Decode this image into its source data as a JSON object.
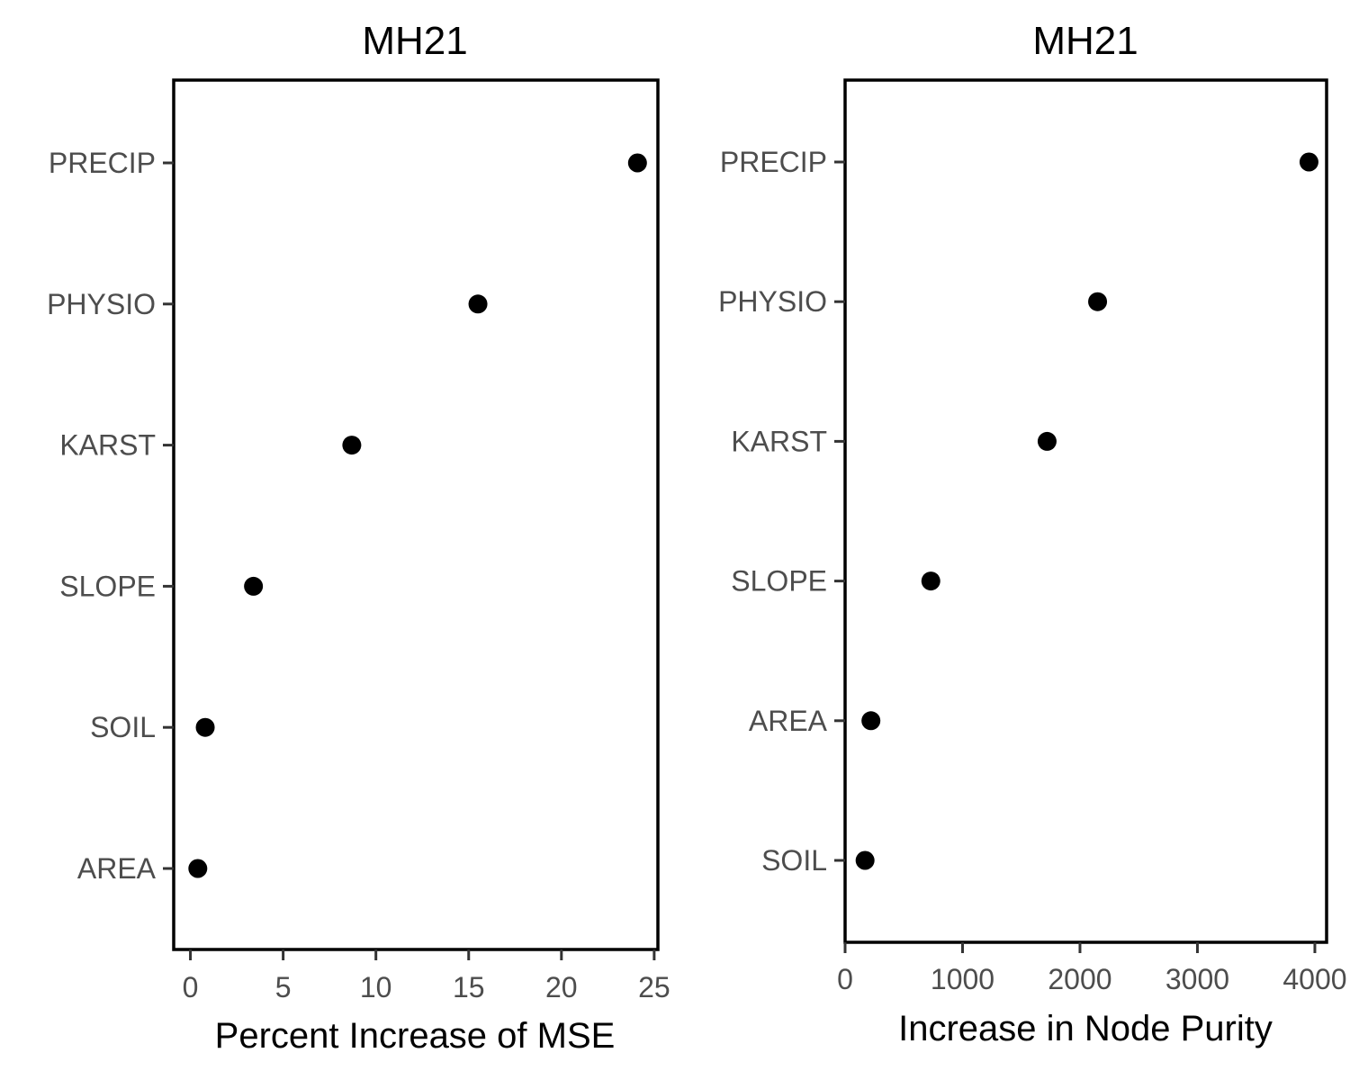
{
  "chart_data": [
    {
      "type": "scatter",
      "title": "MH21",
      "xlabel": "Percent Increase of MSE",
      "ylabel": "",
      "xlim": [
        -0.9,
        25.2
      ],
      "xticks": [
        "0",
        "5",
        "10",
        "15",
        "20",
        "25"
      ],
      "categories": [
        "AREA",
        "SOIL",
        "SLOPE",
        "KARST",
        "PHYSIO",
        "PRECIP"
      ],
      "values": [
        0.4,
        0.8,
        3.4,
        8.7,
        15.5,
        24.1
      ],
      "point_color": "#000000",
      "grid": false
    },
    {
      "type": "scatter",
      "title": "MH21",
      "xlabel": "Increase in Node Purity",
      "ylabel": "",
      "xlim": [
        0,
        4100
      ],
      "xticks": [
        "0",
        "1000",
        "2000",
        "3000",
        "4000"
      ],
      "categories": [
        "SOIL",
        "AREA",
        "SLOPE",
        "KARST",
        "PHYSIO",
        "PRECIP"
      ],
      "values": [
        170,
        220,
        730,
        1720,
        2150,
        3950
      ],
      "point_color": "#000000",
      "grid": false
    }
  ]
}
